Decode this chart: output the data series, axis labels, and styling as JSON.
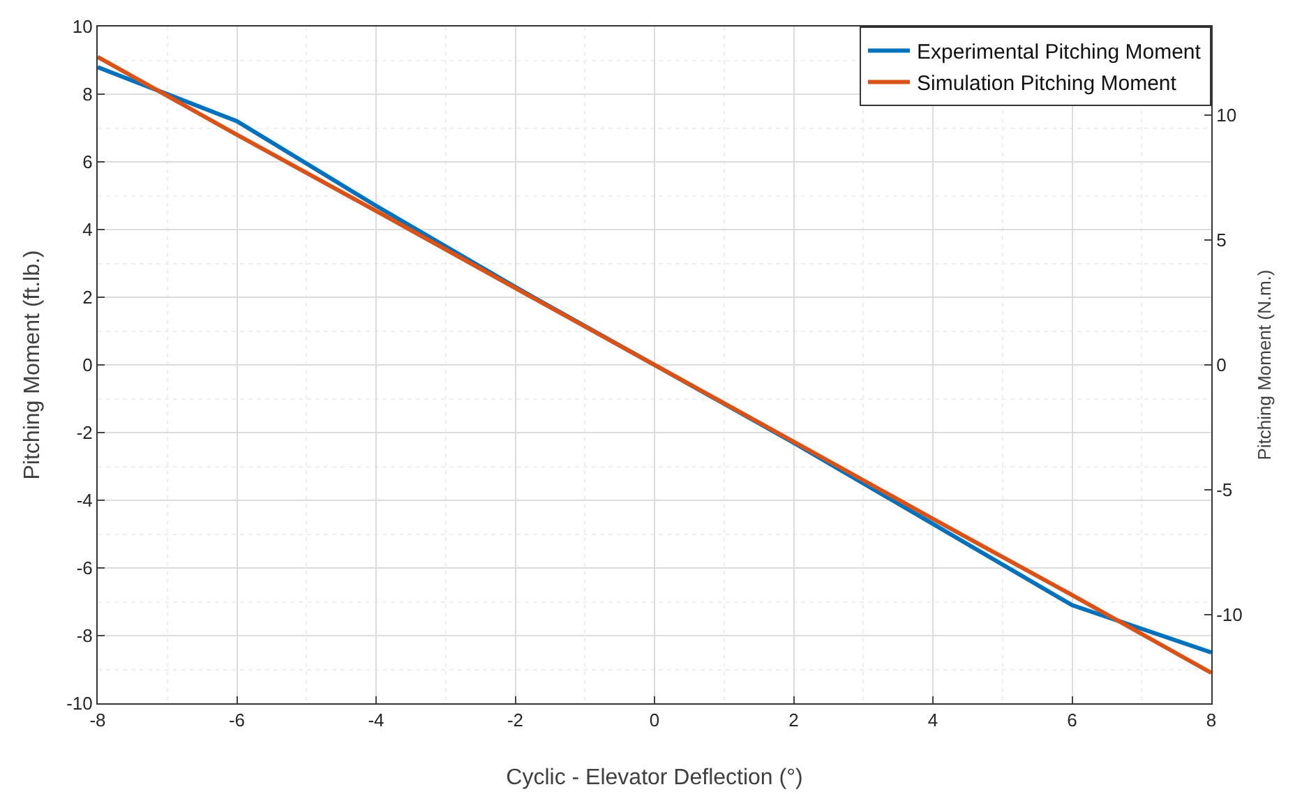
{
  "chart_data": {
    "type": "line",
    "xlabel": "Cyclic - Elevator Deflection (°)",
    "ylabel": "Pitching Moment (ft.lb.)",
    "y2label": "Pitching Moment (N.m.)",
    "x": [
      -8,
      -6,
      -4,
      -2,
      0,
      2,
      4,
      6,
      8
    ],
    "series": [
      {
        "name": "Experimental Pitching Moment",
        "color": "#0072bd",
        "values": [
          8.8,
          7.2,
          4.7,
          2.3,
          0,
          -2.3,
          -4.7,
          -7.1,
          -8.5
        ]
      },
      {
        "name": "Simulation Pitching Moment",
        "color": "#d95319",
        "values": [
          9.1,
          6.8,
          4.55,
          2.27,
          0,
          -2.27,
          -4.55,
          -6.8,
          -9.1
        ]
      }
    ],
    "xlim": [
      -8,
      8
    ],
    "xticks": [
      -8,
      -6,
      -4,
      -2,
      0,
      2,
      4,
      6,
      8
    ],
    "ylim": [
      -10,
      10
    ],
    "yticks": [
      -10,
      -8,
      -6,
      -4,
      -2,
      0,
      2,
      4,
      6,
      8,
      10
    ],
    "y2lim": [
      -13.56,
      13.56
    ],
    "y2ticks": [
      -10,
      -5,
      0,
      5,
      10
    ],
    "grid": true,
    "legend": "top right",
    "marker": "none",
    "line_style": "solid"
  }
}
